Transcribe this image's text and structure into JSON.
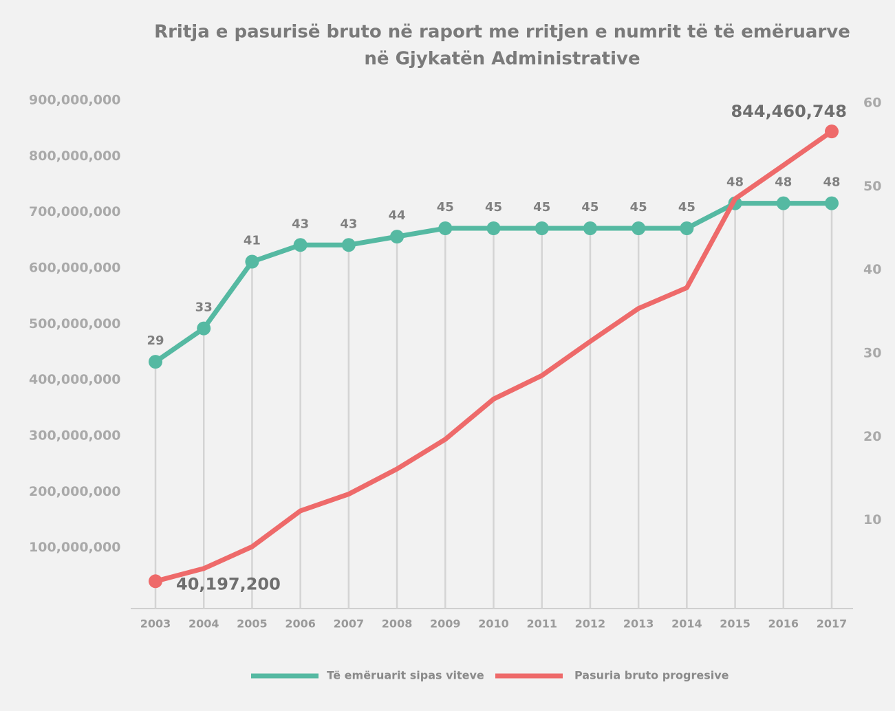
{
  "chart_data": {
    "type": "line",
    "title": "Rritja e pasurisë bruto në raport me rritjen e numrit të të emëruarve",
    "subtitle": "në Gjykatën Administrative",
    "categories": [
      "2003",
      "2004",
      "2005",
      "2006",
      "2007",
      "2008",
      "2009",
      "2010",
      "2011",
      "2012",
      "2013",
      "2014",
      "2015",
      "2016",
      "2017"
    ],
    "series": [
      {
        "name": "Të emëruarit sipas viteve",
        "color": "#55b9a2",
        "axis": "y2",
        "values": [
          29,
          33,
          41,
          43,
          43,
          44,
          45,
          45,
          45,
          45,
          45,
          45,
          48,
          48,
          48
        ]
      },
      {
        "name": "Pasuria bruto progresive",
        "color": "#ee6a6a",
        "values": [
          40197200,
          63000000,
          102000000,
          166000000,
          196000000,
          241000000,
          294000000,
          366000000,
          408000000,
          469000000,
          528000000,
          565000000,
          724000000,
          784000000,
          844460748
        ],
        "value_labels": [
          "40,197,200",
          null,
          null,
          null,
          null,
          null,
          null,
          null,
          null,
          null,
          null,
          null,
          null,
          null,
          "844,460,748"
        ]
      }
    ],
    "ylim": [
      0,
      900000000
    ],
    "yticks": [
      {
        "value": 100000000,
        "label": "100,000,000"
      },
      {
        "value": 200000000,
        "label": "200,000,000"
      },
      {
        "value": 300000000,
        "label": "300,000,000"
      },
      {
        "value": 400000000,
        "label": "400,000,000"
      },
      {
        "value": 500000000,
        "label": "500,000,000"
      },
      {
        "value": 600000000,
        "label": "600,000,000"
      },
      {
        "value": 700000000,
        "label": "700,000,000"
      },
      {
        "value": 800000000,
        "label": "800,000,000"
      },
      {
        "value": 900000000,
        "label": "900,000,000"
      }
    ],
    "y2lim": [
      0,
      60
    ],
    "y2ticks": [
      10,
      20,
      30,
      40,
      50,
      60
    ]
  }
}
